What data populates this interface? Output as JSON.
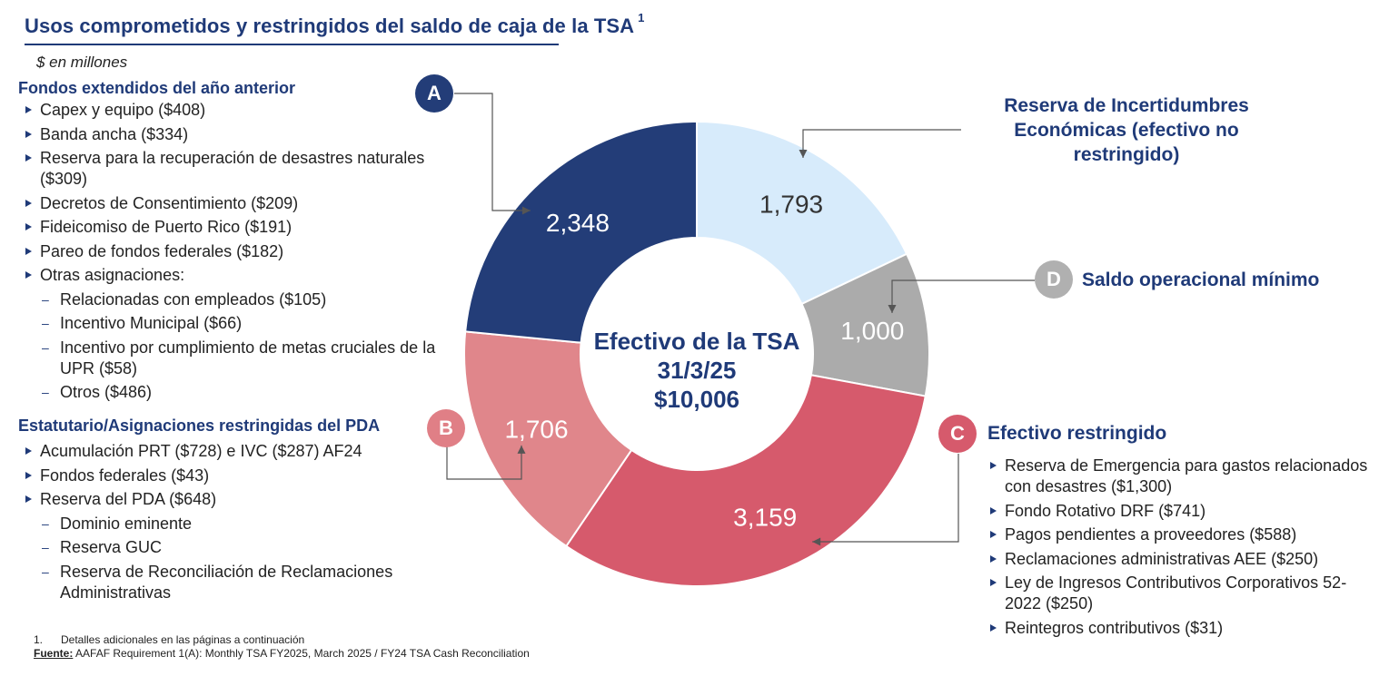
{
  "title": "Usos comprometidos y restringidos del saldo de caja de la TSA",
  "title_sup": "1",
  "units": "$ en millones",
  "left_sections": [
    {
      "heading": "Fondos extendidos del año anterior",
      "items": [
        {
          "style": "tri",
          "text": "Capex y equipo ($408)"
        },
        {
          "style": "tri",
          "text": "Banda ancha ($334)"
        },
        {
          "style": "tri",
          "text": "Reserva para la recuperación de desastres naturales ($309)"
        },
        {
          "style": "tri",
          "text": "Decretos de Consentimiento ($209)"
        },
        {
          "style": "tri",
          "text": "Fideicomiso de Puerto Rico ($191)"
        },
        {
          "style": "tri",
          "text": "Pareo de fondos federales ($182)"
        },
        {
          "style": "tri",
          "text": "Otras asignaciones:"
        },
        {
          "style": "dash",
          "text": "Relacionadas con empleados ($105)"
        },
        {
          "style": "dash",
          "text": "Incentivo Municipal ($66)"
        },
        {
          "style": "dash",
          "text": "Incentivo por cumplimiento de metas cruciales de la UPR ($58)"
        },
        {
          "style": "dash",
          "text": "Otros ($486)"
        }
      ]
    },
    {
      "heading": "Estatutario/Asignaciones restringidas del PDA",
      "items": [
        {
          "style": "tri",
          "text": "Acumulación PRT ($728) e IVC ($287) AF24"
        },
        {
          "style": "tri",
          "text": "Fondos federales ($43)"
        },
        {
          "style": "tri",
          "text": "Reserva del PDA ($648)"
        },
        {
          "style": "dash",
          "text": "Dominio eminente"
        },
        {
          "style": "dash",
          "text": "Reserva GUC"
        },
        {
          "style": "dash",
          "text": "Reserva de Reconciliación de Reclamaciones Administrativas"
        }
      ]
    }
  ],
  "reserve_label": "Reserva de Incertidumbres Económicas (efectivo no restringido)",
  "minimum_label": "Saldo operacional mínimo",
  "restricted": {
    "heading": "Efectivo restringido",
    "items": [
      "Reserva de Emergencia para gastos relacionados con desastres ($1,300)",
      "Fondo Rotativo DRF ($741)",
      "Pagos pendientes a proveedores ($588)",
      "Reclamaciones administrativas AEE ($250)",
      "Ley de Ingresos Contributivos Corporativos 52-2022 ($250)",
      "Reintegros contributivos ($31)"
    ]
  },
  "badges": {
    "a": "A",
    "b": "B",
    "c": "C",
    "d": "D"
  },
  "colors": {
    "title": "#1f3a78",
    "badge_a": "#233d78",
    "badge_b": "#e07f86",
    "badge_c": "#d65a6c",
    "badge_d": "#b0b0b0",
    "connector": "#555555"
  },
  "center": {
    "line1": "Efectivo de la TSA",
    "line2": "31/3/25",
    "line3": "$10,006"
  },
  "footnote": {
    "num": "1.",
    "text": "Detalles adicionales en las páginas a continuación"
  },
  "source": {
    "label": "Fuente:",
    "text": "AAFAF Requirement 1(A): Monthly TSA FY2025, March 2025 /  FY24 TSA Cash Reconciliation"
  },
  "chart_data": {
    "type": "pie",
    "variant": "donut",
    "total": 10006,
    "slices": [
      {
        "key": "reserve",
        "value": 1793,
        "label": "1,793",
        "color": "#d7ebfb",
        "label_color": "#333333"
      },
      {
        "key": "minimum",
        "value": 1000,
        "label": "1,000",
        "color": "#ababab",
        "label_color": "#ffffff"
      },
      {
        "key": "restricted",
        "value": 3159,
        "label": "3,159",
        "color": "#d65a6c",
        "label_color": "#ffffff"
      },
      {
        "key": "statutory",
        "value": 1706,
        "label": "1,706",
        "color": "#e0868b",
        "label_color": "#ffffff"
      },
      {
        "key": "extended",
        "value": 2348,
        "label": "2,348",
        "color": "#233d78",
        "label_color": "#ffffff"
      }
    ]
  }
}
